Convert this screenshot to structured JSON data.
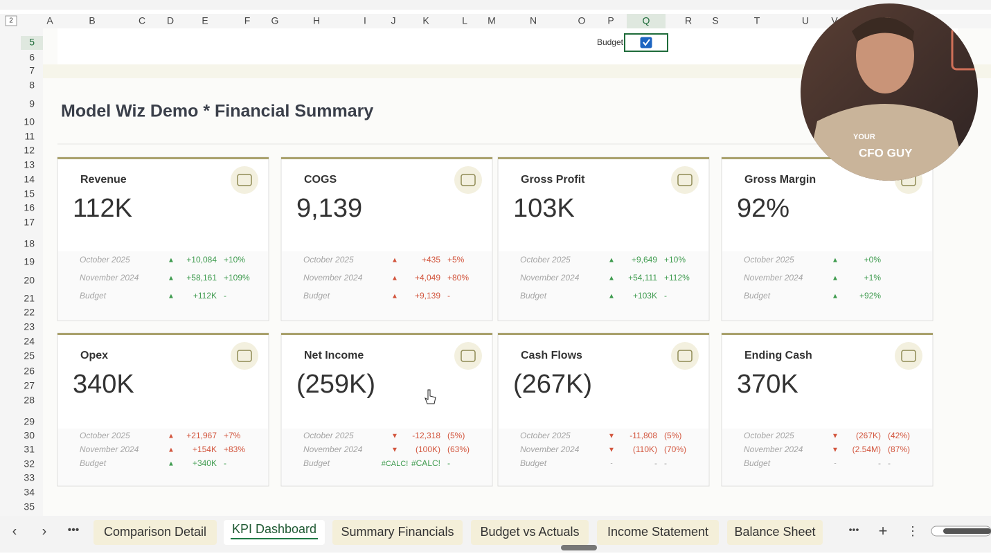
{
  "column_headers": [
    "A",
    "B",
    "C",
    "D",
    "E",
    "F",
    "G",
    "H",
    "I",
    "J",
    "K",
    "L",
    "M",
    "N",
    "O",
    "P",
    "Q",
    "R",
    "S",
    "T",
    "U",
    "V"
  ],
  "row_headers": [
    "5",
    "6",
    "7",
    "8",
    "9",
    "10",
    "11",
    "12",
    "13",
    "14",
    "15",
    "16",
    "17",
    "18",
    "19",
    "20",
    "21",
    "22",
    "23",
    "24",
    "25",
    "26",
    "27",
    "28",
    "29",
    "30",
    "31",
    "32",
    "33",
    "34",
    "35"
  ],
  "outline_level": "2",
  "filter": {
    "label": "Budget",
    "checked": true
  },
  "dashboard": {
    "title": "Model Wiz Demo * Financial Summary",
    "cards": [
      {
        "title": "Revenue",
        "value": "112K",
        "rows": [
          {
            "label": "October 2025",
            "arrow": "▲",
            "change": "+10,084",
            "pct": "+10%",
            "color": "#3f9b4f"
          },
          {
            "label": "November 2024",
            "arrow": "▲",
            "change": "+58,161",
            "pct": "+109%",
            "color": "#3f9b4f"
          },
          {
            "label": "Budget",
            "arrow": "▲",
            "change": "+112K",
            "pct": "-",
            "color": "#3f9b4f"
          }
        ]
      },
      {
        "title": "COGS",
        "value": "9,139",
        "rows": [
          {
            "label": "October 2025",
            "arrow": "▲",
            "change": "+435",
            "pct": "+5%",
            "color": "#d2553d"
          },
          {
            "label": "November 2024",
            "arrow": "▲",
            "change": "+4,049",
            "pct": "+80%",
            "color": "#d2553d"
          },
          {
            "label": "Budget",
            "arrow": "▲",
            "change": "+9,139",
            "pct": "-",
            "color": "#d2553d"
          }
        ]
      },
      {
        "title": "Gross Profit",
        "value": "103K",
        "rows": [
          {
            "label": "October 2025",
            "arrow": "▲",
            "change": "+9,649",
            "pct": "+10%",
            "color": "#3f9b4f"
          },
          {
            "label": "November 2024",
            "arrow": "▲",
            "change": "+54,111",
            "pct": "+112%",
            "color": "#3f9b4f"
          },
          {
            "label": "Budget",
            "arrow": "▲",
            "change": "+103K",
            "pct": "-",
            "color": "#3f9b4f"
          }
        ]
      },
      {
        "title": "Gross Margin",
        "value": "92%",
        "rows": [
          {
            "label": "October 2025",
            "arrow": "▲",
            "change": "+0%",
            "color": "#3f9b4f"
          },
          {
            "label": "November 2024",
            "arrow": "▲",
            "change": "+1%",
            "color": "#3f9b4f"
          },
          {
            "label": "Budget",
            "arrow": "▲",
            "change": "+92%",
            "color": "#3f9b4f"
          }
        ]
      },
      {
        "title": "Opex",
        "value": "340K",
        "rows": [
          {
            "label": "October 2025",
            "arrow": "▲",
            "change": "+21,967",
            "pct": "+7%",
            "color": "#d2553d"
          },
          {
            "label": "November 2024",
            "arrow": "▲",
            "change": "+154K",
            "pct": "+83%",
            "color": "#d2553d"
          },
          {
            "label": "Budget",
            "arrow": "▲",
            "change": "+340K",
            "pct": "-",
            "color": "#3f9b4f"
          }
        ]
      },
      {
        "title": "Net Income",
        "value": "(259K)",
        "rows": [
          {
            "label": "October 2025",
            "arrow": "▼",
            "change": "-12,318",
            "pct": "(5%)",
            "color": "#d2553d"
          },
          {
            "label": "November 2024",
            "arrow": "▼",
            "change": "(100K)",
            "pct": "(63%)",
            "color": "#d2553d"
          },
          {
            "label": "Budget",
            "arrow": "#CALC!",
            "change": "#CALC!",
            "pct": "-",
            "color": "#3f9b4f"
          }
        ]
      },
      {
        "title": "Cash Flows",
        "value": "(267K)",
        "rows": [
          {
            "label": "October 2025",
            "arrow": "▼",
            "change": "-11,808",
            "pct": "(5%)",
            "color": "#d2553d"
          },
          {
            "label": "November 2024",
            "arrow": "▼",
            "change": "(110K)",
            "pct": "(70%)",
            "color": "#d2553d"
          },
          {
            "label": "Budget",
            "arrow": "-",
            "change": "-",
            "pct": "-",
            "color": "#aaaaaa"
          }
        ]
      },
      {
        "title": "Ending Cash",
        "value": "370K",
        "rows": [
          {
            "label": "October 2025",
            "arrow": "▼",
            "change": "(267K)",
            "pct": "(42%)",
            "color": "#d2553d"
          },
          {
            "label": "November 2024",
            "arrow": "▼",
            "change": "(2.54M)",
            "pct": "(87%)",
            "color": "#d2553d"
          },
          {
            "label": "Budget",
            "arrow": "-",
            "change": "-",
            "pct": "-",
            "color": "#aaaaaa"
          }
        ]
      }
    ]
  },
  "sheet_tabs": {
    "tabs": [
      "Comparison Detail",
      "KPI Dashboard",
      "Summary Financials",
      "Budget vs Actuals",
      "Income Statement",
      "Balance Sheet"
    ],
    "active": 1
  },
  "webcam": {
    "texts": [
      "YOUR",
      "CFO GUY"
    ]
  }
}
